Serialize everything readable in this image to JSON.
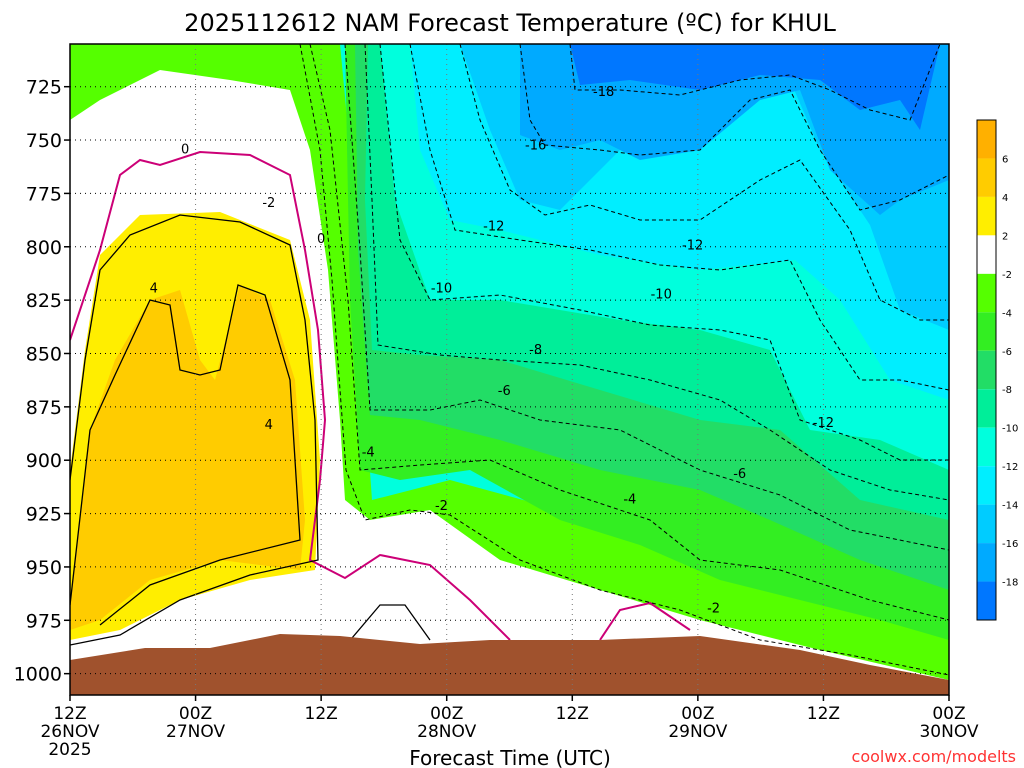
{
  "chart_data": {
    "type": "contour",
    "title": "2025112612 NAM Forecast Temperature (ºC) for KHUL",
    "xlabel": "Forecast Time (UTC)",
    "credit": "coolwx.com/modelts",
    "x_ticks": [
      {
        "h": 0,
        "l1": "12Z",
        "l2": "26NOV",
        "l3": "2025"
      },
      {
        "h": 12,
        "l1": "00Z",
        "l2": "27NOV",
        "l3": ""
      },
      {
        "h": 24,
        "l1": "12Z",
        "l2": "",
        "l3": ""
      },
      {
        "h": 36,
        "l1": "00Z",
        "l2": "28NOV",
        "l3": ""
      },
      {
        "h": 48,
        "l1": "12Z",
        "l2": "",
        "l3": ""
      },
      {
        "h": 60,
        "l1": "00Z",
        "l2": "29NOV",
        "l3": ""
      },
      {
        "h": 72,
        "l1": "12Z",
        "l2": "",
        "l3": ""
      },
      {
        "h": 84,
        "l1": "00Z",
        "l2": "30NOV",
        "l3": ""
      }
    ],
    "y_ticks": [
      725,
      750,
      775,
      800,
      825,
      850,
      875,
      900,
      925,
      950,
      975,
      1000
    ],
    "x_range_hours": [
      0,
      84
    ],
    "y_range_hPa": [
      705,
      1010
    ],
    "colorbar": {
      "labels": [
        "6",
        "4",
        "2",
        "-2",
        "-4",
        "-6",
        "-8",
        "-10",
        "-12",
        "-14",
        "-16",
        "-18"
      ],
      "classes": [
        {
          "min": 6,
          "max": 8,
          "color": "#ffb000"
        },
        {
          "min": 4,
          "max": 6,
          "color": "#ffcc00"
        },
        {
          "min": 2,
          "max": 4,
          "color": "#ffee00"
        },
        {
          "min": -2,
          "max": 2,
          "color": "#ffffff"
        },
        {
          "min": -4,
          "max": -2,
          "color": "#55ff00"
        },
        {
          "min": -6,
          "max": -4,
          "color": "#33ee22"
        },
        {
          "min": -8,
          "max": -6,
          "color": "#22dd66"
        },
        {
          "min": -10,
          "max": -8,
          "color": "#00ee99"
        },
        {
          "min": -12,
          "max": -10,
          "color": "#00ffdd"
        },
        {
          "min": -14,
          "max": -12,
          "color": "#00eeff"
        },
        {
          "min": -16,
          "max": -14,
          "color": "#00ccff"
        },
        {
          "min": -18,
          "max": -16,
          "color": "#00aaff"
        },
        {
          "min": -20,
          "max": -18,
          "color": "#0077ff"
        }
      ]
    },
    "contour_labels": [
      {
        "text": "0",
        "h": 11.0,
        "p": 754
      },
      {
        "text": "-2",
        "h": 19.0,
        "p": 779
      },
      {
        "text": "0",
        "h": 24.0,
        "p": 796
      },
      {
        "text": "4",
        "h": 8.0,
        "p": 819
      },
      {
        "text": "4",
        "h": 19.0,
        "p": 883
      },
      {
        "text": "-4",
        "h": 28.5,
        "p": 896
      },
      {
        "text": "-2",
        "h": 35.5,
        "p": 921
      },
      {
        "text": "-18",
        "h": 51.0,
        "p": 727
      },
      {
        "text": "-16",
        "h": 44.5,
        "p": 752
      },
      {
        "text": "-12",
        "h": 40.5,
        "p": 790
      },
      {
        "text": "-12",
        "h": 59.5,
        "p": 799
      },
      {
        "text": "-10",
        "h": 35.5,
        "p": 819
      },
      {
        "text": "-10",
        "h": 56.5,
        "p": 822
      },
      {
        "text": "-8",
        "h": 44.5,
        "p": 848
      },
      {
        "text": "-6",
        "h": 41.5,
        "p": 867
      },
      {
        "text": "-12",
        "h": 72.0,
        "p": 882
      },
      {
        "text": "-6",
        "h": 64.0,
        "p": 906
      },
      {
        "text": "-4",
        "h": 53.5,
        "p": 918
      },
      {
        "text": "-2",
        "h": 61.5,
        "p": 969
      }
    ]
  }
}
